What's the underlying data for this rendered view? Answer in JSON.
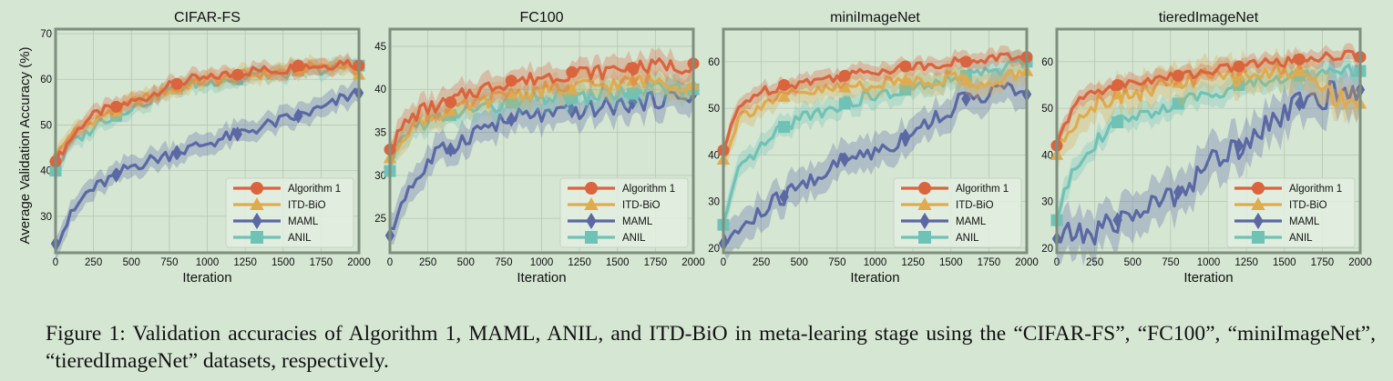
{
  "caption": "Figure 1: Validation accuracies of Algorithm 1, MAML, ANIL, and ITD-BiO in meta-learing stage using the “CIFAR-FS”, “FC100”, “miniImageNet”, “tieredImageNet” datasets, respectively.",
  "colors": {
    "Algorithm 1": "#d9643e",
    "ITD-BiO": "#dfab4f",
    "MAML": "#5b68a4",
    "ANIL": "#6fc2b6",
    "background": "#d5e6d3",
    "grid": "#b6c6b4",
    "frame": "#7f8f7e"
  },
  "chart_data": [
    {
      "type": "line",
      "title": "CIFAR-FS",
      "xlabel": "Iteration",
      "ylabel": "Average Validation Accuracy (%)",
      "xlim": [
        0,
        2000
      ],
      "ylim": [
        22,
        71
      ],
      "xticks": [
        0,
        250,
        500,
        750,
        1000,
        1250,
        1500,
        1750,
        2000
      ],
      "yticks": [
        30,
        40,
        50,
        60,
        70
      ],
      "grid": true,
      "legend": "bottom-right",
      "x": [
        0,
        100,
        200,
        300,
        400,
        500,
        600,
        700,
        800,
        900,
        1000,
        1100,
        1200,
        1300,
        1400,
        1500,
        1600,
        1700,
        1800,
        1900,
        2000
      ],
      "series": [
        {
          "name": "Algorithm 1",
          "marker": "circle",
          "values": [
            42,
            47,
            51,
            53,
            54,
            55,
            56,
            58,
            59,
            60,
            60,
            61,
            61,
            62,
            62,
            62,
            63,
            63,
            63,
            64,
            63
          ],
          "band": 1.5
        },
        {
          "name": "ITD-BiO",
          "marker": "triangle",
          "values": [
            43,
            48,
            50,
            52,
            53,
            55,
            56,
            57,
            58,
            59,
            60,
            60,
            61,
            61,
            61,
            62,
            62,
            63,
            63,
            63,
            61
          ],
          "band": 1.5
        },
        {
          "name": "MAML",
          "marker": "diamond",
          "values": [
            24,
            30,
            35,
            37,
            39,
            41,
            42,
            43,
            44,
            45,
            46,
            47,
            48,
            49,
            50,
            51,
            52,
            53,
            54,
            56,
            57
          ],
          "band": 2
        },
        {
          "name": "ANIL",
          "marker": "square",
          "values": [
            40,
            46,
            48,
            51,
            52,
            54,
            55,
            57,
            58,
            59,
            59,
            60,
            60,
            61,
            61,
            61,
            62,
            62,
            62,
            63,
            63
          ],
          "band": 1.5
        }
      ]
    },
    {
      "type": "line",
      "title": "FC100",
      "xlabel": "Iteration",
      "ylabel": "",
      "xlim": [
        0,
        2000
      ],
      "ylim": [
        21,
        47
      ],
      "xticks": [
        0,
        250,
        500,
        750,
        1000,
        1250,
        1500,
        1750,
        2000
      ],
      "yticks": [
        25,
        30,
        35,
        40,
        45
      ],
      "grid": true,
      "legend": "bottom-right",
      "x": [
        0,
        100,
        200,
        300,
        400,
        500,
        600,
        700,
        800,
        900,
        1000,
        1100,
        1200,
        1300,
        1400,
        1500,
        1600,
        1700,
        1800,
        1900,
        2000
      ],
      "series": [
        {
          "name": "Algorithm 1",
          "marker": "circle",
          "values": [
            33,
            36,
            37.5,
            38,
            38.5,
            39.5,
            40,
            40.5,
            41,
            41,
            41.5,
            41.5,
            42,
            42,
            42,
            42.5,
            42.5,
            42.5,
            43,
            42.5,
            43
          ],
          "band": 1.2
        },
        {
          "name": "ITD-BiO",
          "marker": "triangle",
          "values": [
            32,
            35,
            36.5,
            37,
            37.5,
            38,
            38.5,
            39,
            39.5,
            39.5,
            40,
            40,
            40,
            40.5,
            40.5,
            40.5,
            41,
            41,
            41,
            40.5,
            40.5
          ],
          "band": 1.2
        },
        {
          "name": "MAML",
          "marker": "diamond",
          "values": [
            23,
            28,
            30,
            32.5,
            33,
            34.5,
            35.5,
            36,
            36.5,
            37,
            37,
            37,
            37.5,
            37.5,
            38,
            38,
            38.5,
            38.5,
            39,
            39,
            39.5
          ],
          "band": 1.5
        },
        {
          "name": "ANIL",
          "marker": "square",
          "values": [
            30.5,
            35,
            36,
            36.5,
            37,
            37.5,
            38,
            38,
            38.5,
            38.5,
            39,
            39,
            39,
            39,
            39.5,
            39.5,
            39.5,
            40,
            40,
            40,
            40
          ],
          "band": 1.2
        }
      ]
    },
    {
      "type": "line",
      "title": "miniImageNet",
      "xlabel": "Iteration",
      "ylabel": "",
      "xlim": [
        0,
        2000
      ],
      "ylim": [
        19,
        67
      ],
      "xticks": [
        0,
        250,
        500,
        750,
        1000,
        1250,
        1500,
        1750,
        2000
      ],
      "yticks": [
        20,
        30,
        40,
        50,
        60
      ],
      "grid": true,
      "legend": "bottom-right",
      "x": [
        0,
        100,
        200,
        300,
        400,
        500,
        600,
        700,
        800,
        900,
        1000,
        1100,
        1200,
        1300,
        1400,
        1500,
        1600,
        1700,
        1800,
        1900,
        2000
      ],
      "series": [
        {
          "name": "Algorithm 1",
          "marker": "circle",
          "values": [
            41,
            50,
            53,
            54,
            55,
            55.5,
            56,
            56.5,
            57,
            57.5,
            58,
            58.5,
            59,
            59,
            59.5,
            60,
            60,
            60.5,
            61,
            61,
            61
          ],
          "band": 1.5
        },
        {
          "name": "ITD-BiO",
          "marker": "triangle",
          "values": [
            39,
            48,
            50,
            51.5,
            52.5,
            53,
            53.5,
            54,
            54.5,
            55,
            55,
            55.5,
            56,
            56,
            56,
            57,
            56,
            55,
            55,
            57,
            58
          ],
          "band": 2
        },
        {
          "name": "MAML",
          "marker": "diamond",
          "values": [
            21,
            24,
            26,
            29,
            31,
            33,
            35,
            37,
            39,
            40,
            41,
            42,
            44,
            46,
            48,
            50,
            52,
            53,
            54,
            54,
            53
          ],
          "band": 3
        },
        {
          "name": "ANIL",
          "marker": "square",
          "values": [
            25,
            36,
            40,
            43,
            46,
            48,
            49,
            50,
            51,
            52,
            52.5,
            53,
            54,
            54.5,
            55,
            56,
            57,
            57.5,
            58,
            59,
            60
          ],
          "band": 2
        }
      ]
    },
    {
      "type": "line",
      "title": "tieredImageNet",
      "xlabel": "Iteration",
      "ylabel": "",
      "xlim": [
        0,
        2000
      ],
      "ylim": [
        19,
        67
      ],
      "xticks": [
        0,
        250,
        500,
        750,
        1000,
        1250,
        1500,
        1750,
        2000
      ],
      "yticks": [
        20,
        30,
        40,
        50,
        60
      ],
      "grid": true,
      "legend": "bottom-right",
      "x": [
        0,
        100,
        200,
        300,
        400,
        500,
        600,
        700,
        800,
        900,
        1000,
        1100,
        1200,
        1300,
        1400,
        1500,
        1600,
        1700,
        1800,
        1900,
        2000
      ],
      "series": [
        {
          "name": "Algorithm 1",
          "marker": "circle",
          "values": [
            42,
            50,
            53,
            54,
            55,
            55.5,
            56,
            56.5,
            57,
            57.5,
            58,
            58.5,
            59,
            59.5,
            60,
            60,
            60.5,
            61,
            61,
            61.5,
            61
          ],
          "band": 1.5
        },
        {
          "name": "ITD-BiO",
          "marker": "triangle",
          "values": [
            40,
            47,
            50,
            52,
            53,
            53.5,
            54,
            55,
            55.5,
            56,
            56.5,
            57,
            57,
            57.5,
            57.5,
            58,
            58,
            56,
            53,
            52,
            51
          ],
          "band": 3
        },
        {
          "name": "MAML",
          "marker": "diamond",
          "values": [
            22,
            23,
            23,
            24,
            26,
            27,
            29,
            30,
            32,
            35,
            38,
            40,
            42,
            45,
            47,
            49,
            51,
            52,
            53,
            53,
            54
          ],
          "band": 4
        },
        {
          "name": "ANIL",
          "marker": "square",
          "values": [
            26,
            37,
            41,
            44,
            47,
            48,
            49,
            50,
            51,
            52,
            53,
            54,
            55,
            55.5,
            56,
            56.5,
            57,
            57.5,
            58,
            58,
            58
          ],
          "band": 2
        }
      ]
    }
  ]
}
